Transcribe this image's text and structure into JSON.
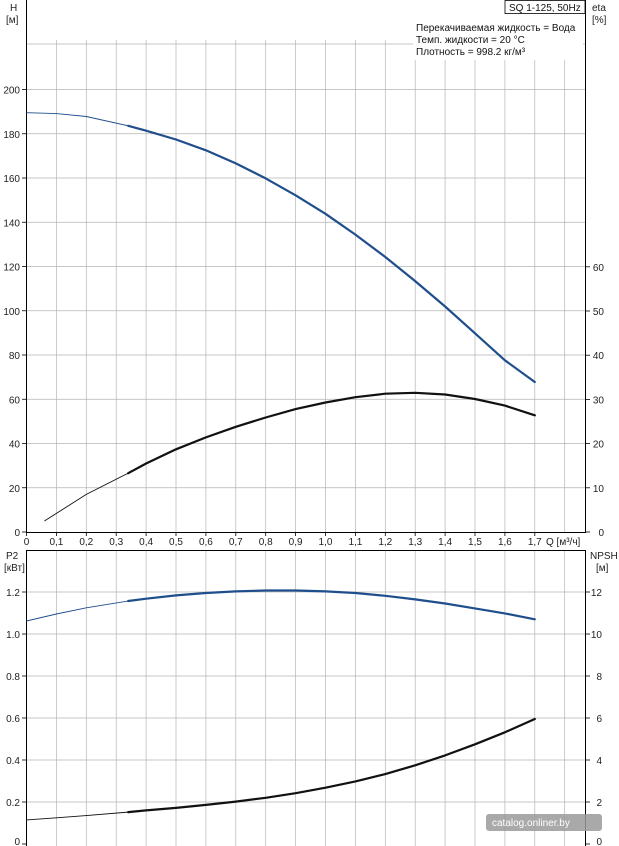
{
  "chart_data": [
    {
      "type": "line",
      "title": "SQ 1-125, 50Hz",
      "info": [
        "Перекачиваемая жидкость = Вода",
        "Темп. жидкости = 20 °C",
        "Плотность = 998.2 кг/м³"
      ],
      "x_label": "Q [м³/ч]",
      "x_ticks": [
        "0",
        "0,1",
        "0,2",
        "0,3",
        "0,4",
        "0,5",
        "0,6",
        "0,7",
        "0,8",
        "0,9",
        "1,0",
        "1,1",
        "1,2",
        "1,3",
        "1,4",
        "1,5",
        "1,6",
        "1,7"
      ],
      "xlim": [
        0,
        1.8
      ],
      "y_left_label_top": "H",
      "y_left_label_unit": "[м]",
      "y_left_ticks": [
        "0",
        "20",
        "40",
        "60",
        "80",
        "100",
        "120",
        "140",
        "160",
        "180",
        "200"
      ],
      "ylim_left": [
        0,
        200
      ],
      "y_right_label_top": "eta",
      "y_right_label_unit": "[%]",
      "y_right_ticks": [
        "0",
        "10",
        "20",
        "30",
        "40",
        "50",
        "60"
      ],
      "ylim_right": [
        0,
        90
      ],
      "grid": true,
      "series": [
        {
          "name": "H",
          "axis": "left",
          "color": "#1f4e8c",
          "points": [
            [
              0.0,
              189.5
            ],
            [
              0.1,
              189.1
            ],
            [
              0.2,
              187.8
            ],
            [
              0.34,
              183.6
            ],
            [
              0.4,
              181.4
            ],
            [
              0.5,
              177.4
            ],
            [
              0.6,
              172.5
            ],
            [
              0.7,
              166.6
            ],
            [
              0.8,
              159.8
            ],
            [
              0.9,
              152.2
            ],
            [
              1.0,
              143.8
            ],
            [
              1.1,
              134.4
            ],
            [
              1.2,
              124.3
            ],
            [
              1.3,
              113.4
            ],
            [
              1.4,
              101.9
            ],
            [
              1.5,
              89.8
            ],
            [
              1.6,
              77.6
            ],
            [
              1.7,
              67.8
            ]
          ]
        },
        {
          "name": "eta",
          "axis": "right",
          "color": "#111111",
          "points": [
            [
              0.06,
              2.5
            ],
            [
              0.1,
              4.2
            ],
            [
              0.2,
              8.5
            ],
            [
              0.34,
              13.3
            ],
            [
              0.4,
              15.5
            ],
            [
              0.5,
              18.7
            ],
            [
              0.6,
              21.4
            ],
            [
              0.7,
              23.8
            ],
            [
              0.8,
              25.9
            ],
            [
              0.9,
              27.8
            ],
            [
              1.0,
              29.3
            ],
            [
              1.1,
              30.5
            ],
            [
              1.2,
              31.3
            ],
            [
              1.3,
              31.5
            ],
            [
              1.4,
              31.1
            ],
            [
              1.5,
              30.1
            ],
            [
              1.6,
              28.6
            ],
            [
              1.7,
              26.4
            ]
          ]
        }
      ]
    },
    {
      "type": "line",
      "y_left_label_top": "P2",
      "y_left_label_unit": "[кВт]",
      "y_left_ticks": [
        "0",
        "0.2",
        "0.4",
        "0.6",
        "0.8",
        "1.0",
        "1.2"
      ],
      "ylim_left": [
        0,
        1.3
      ],
      "y_right_label_top": "NPSH",
      "y_right_label_unit": "[м]",
      "y_right_ticks": [
        "0",
        "2",
        "4",
        "6",
        "8",
        "10",
        "12"
      ],
      "ylim_right": [
        0,
        13
      ],
      "xlim": [
        0,
        1.8
      ],
      "grid": true,
      "series": [
        {
          "name": "P2",
          "axis": "left",
          "color": "#1f4e8c",
          "points": [
            [
              0.0,
              1.062
            ],
            [
              0.1,
              1.095
            ],
            [
              0.2,
              1.125
            ],
            [
              0.34,
              1.157
            ],
            [
              0.4,
              1.168
            ],
            [
              0.5,
              1.184
            ],
            [
              0.6,
              1.195
            ],
            [
              0.7,
              1.203
            ],
            [
              0.8,
              1.207
            ],
            [
              0.9,
              1.207
            ],
            [
              1.0,
              1.203
            ],
            [
              1.1,
              1.195
            ],
            [
              1.2,
              1.182
            ],
            [
              1.3,
              1.165
            ],
            [
              1.4,
              1.145
            ],
            [
              1.5,
              1.122
            ],
            [
              1.6,
              1.098
            ],
            [
              1.7,
              1.07
            ]
          ]
        },
        {
          "name": "NPSH",
          "axis": "right",
          "color": "#111111",
          "points": [
            [
              0.0,
              1.15
            ],
            [
              0.1,
              1.25
            ],
            [
              0.2,
              1.35
            ],
            [
              0.34,
              1.52
            ],
            [
              0.4,
              1.6
            ],
            [
              0.5,
              1.72
            ],
            [
              0.6,
              1.86
            ],
            [
              0.7,
              2.02
            ],
            [
              0.8,
              2.2
            ],
            [
              0.9,
              2.42
            ],
            [
              1.0,
              2.68
            ],
            [
              1.1,
              2.98
            ],
            [
              1.2,
              3.33
            ],
            [
              1.3,
              3.75
            ],
            [
              1.4,
              4.22
            ],
            [
              1.5,
              4.75
            ],
            [
              1.6,
              5.32
            ],
            [
              1.7,
              5.95
            ]
          ]
        }
      ]
    }
  ],
  "watermark": "catalog.onliner.by"
}
